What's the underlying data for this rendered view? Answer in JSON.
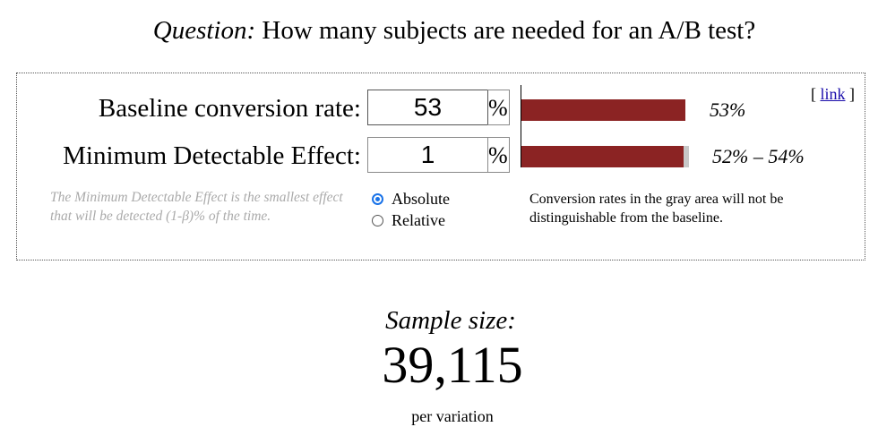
{
  "question": {
    "lead": "Question:",
    "text": "How many subjects are needed for an A/B test?"
  },
  "link_open": "[",
  "link_label": "link",
  "link_close": "]",
  "baseline": {
    "label": "Baseline conversion rate:",
    "value": "53",
    "unit": "%",
    "bar_fraction": 0.53,
    "bar_label": "53%"
  },
  "mde": {
    "label": "Minimum Detectable Effect:",
    "value": "1",
    "unit": "%",
    "range_low_fraction": 0.52,
    "range_high_fraction": 0.54,
    "bar_label": "52% – 54%"
  },
  "help_text": "The Minimum Detectable Effect is the smallest effect that will be detected (1-β)% of the time.",
  "mde_mode": {
    "options": [
      {
        "label": "Absolute",
        "selected": true
      },
      {
        "label": "Relative",
        "selected": false
      }
    ]
  },
  "gray_note": "Conversion rates in the gray area will not be distinguishable from the baseline.",
  "result": {
    "label": "Sample size:",
    "value": "39,115",
    "unit": "per variation"
  },
  "colors": {
    "bar": "#8b2323",
    "gray_area": "#c8c8c8",
    "link": "#1a0dab",
    "radio_selected": "#1a73e8"
  }
}
